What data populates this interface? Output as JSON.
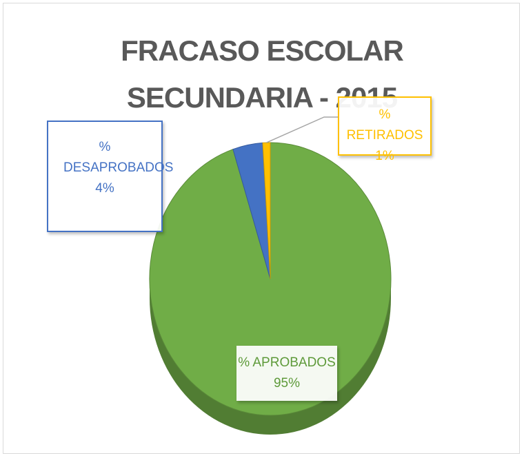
{
  "chart_data": {
    "type": "pie",
    "title": "FRACASO ESCOLAR  SECUNDARIA - 2015",
    "categories": [
      "% APROBADOS",
      "% DESAPROBADOS",
      "% RETIRADOS"
    ],
    "values": [
      95,
      4,
      1
    ],
    "value_labels": [
      "95%",
      "4%",
      "1%"
    ],
    "colors": [
      "#70ad47",
      "#4472c4",
      "#ffc000"
    ]
  }
}
